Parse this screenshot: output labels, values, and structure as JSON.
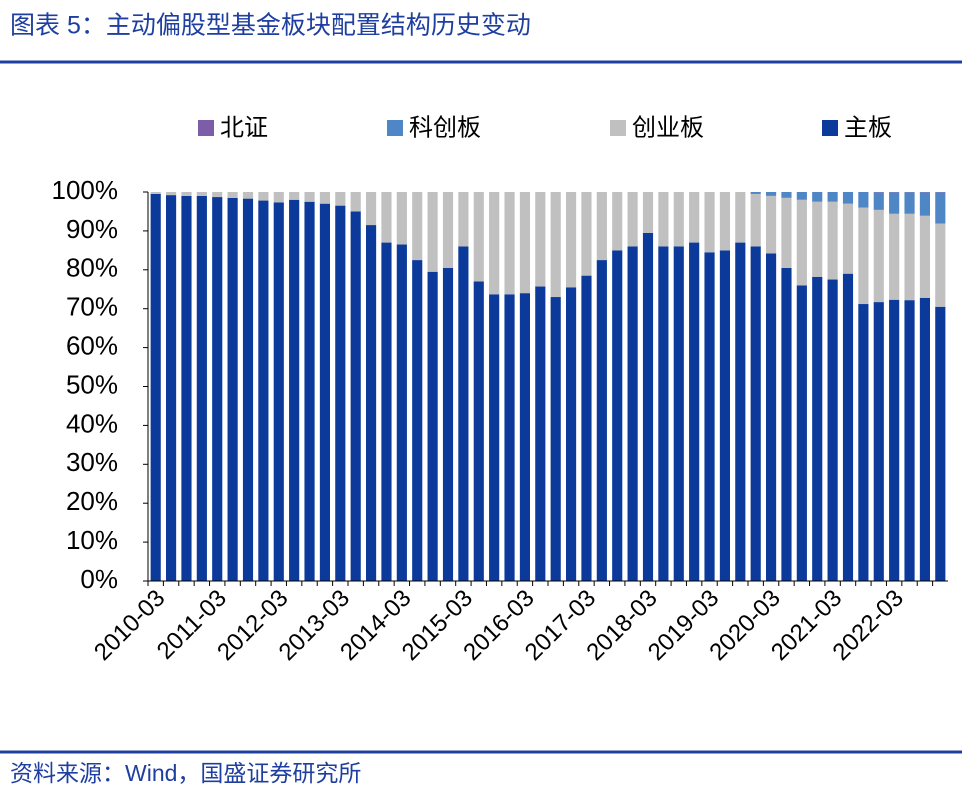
{
  "chart_data": {
    "type": "stacked_bar",
    "title": "图表 5：主动偏股型基金板块配置结构历史变动",
    "source": "资料来源：Wind，国盛证券研究所",
    "categories": [
      "2010-03",
      null,
      null,
      null,
      "2011-03",
      null,
      null,
      null,
      "2012-03",
      null,
      null,
      null,
      "2013-03",
      null,
      null,
      null,
      "2014-03",
      null,
      null,
      null,
      "2015-03",
      null,
      null,
      null,
      "2016-03",
      null,
      null,
      null,
      "2017-03",
      null,
      null,
      null,
      "2018-03",
      null,
      null,
      null,
      "2019-03",
      null,
      null,
      null,
      "2020-03",
      null,
      null,
      null,
      "2021-03",
      null,
      null,
      null,
      "2022-03",
      null,
      null,
      null
    ],
    "series": [
      {
        "name": "北证",
        "color": "#7b5ea7",
        "values": [
          0,
          0,
          0,
          0,
          0,
          0,
          0,
          0,
          0,
          0,
          0,
          0,
          0,
          0,
          0,
          0,
          0,
          0,
          0,
          0,
          0,
          0,
          0,
          0,
          0,
          0,
          0,
          0,
          0,
          0,
          0,
          0,
          0,
          0,
          0,
          0,
          0,
          0,
          0,
          0,
          0,
          0,
          0,
          0,
          0,
          0,
          0,
          0.1,
          0.1,
          0.1,
          0.1,
          0.1
        ]
      },
      {
        "name": "科创板",
        "color": "#4f86c6",
        "values": [
          0,
          0,
          0,
          0,
          0,
          0,
          0,
          0,
          0,
          0,
          0,
          0,
          0,
          0,
          0,
          0,
          0,
          0,
          0,
          0,
          0,
          0,
          0,
          0,
          0,
          0,
          0,
          0,
          0,
          0,
          0,
          0,
          0,
          0,
          0,
          0,
          0,
          0,
          0,
          0.5,
          1,
          1.5,
          2,
          2.5,
          2.5,
          3,
          4,
          4.5,
          5.5,
          5.5,
          6,
          8
        ]
      },
      {
        "name": "创业板",
        "color": "#c0c0c0",
        "values": [
          0.5,
          0.8,
          1,
          1,
          1.3,
          1.5,
          1.7,
          2.2,
          2.7,
          2,
          2.5,
          3,
          3.5,
          5,
          8.5,
          13,
          13.5,
          17.5,
          20.5,
          19.5,
          14,
          23,
          26.3,
          26.3,
          26,
          24.3,
          27,
          24.5,
          21.5,
          17.5,
          15,
          14,
          10.5,
          14,
          14,
          13,
          15.5,
          15,
          13,
          13.5,
          14.8,
          18,
          22,
          19.3,
          20,
          18,
          24.8,
          23.7,
          22.1,
          22.2,
          21.1,
          21.4
        ]
      },
      {
        "name": "主板",
        "color": "#0b3a9a",
        "values": [
          99.5,
          99.2,
          99,
          99,
          98.7,
          98.5,
          98.3,
          97.8,
          97.3,
          98,
          97.5,
          97,
          96.5,
          95,
          91.5,
          87,
          86.5,
          82.5,
          79.5,
          80.5,
          86,
          77,
          73.7,
          73.7,
          74,
          75.7,
          73,
          75.5,
          78.5,
          82.5,
          85,
          86,
          89.5,
          86,
          86,
          87,
          84.5,
          85,
          87,
          86,
          84.2,
          80.5,
          76,
          78.2,
          77.5,
          79,
          71.2,
          71.7,
          72.3,
          72.2,
          72.8,
          70.5
        ]
      }
    ],
    "ylim": [
      0,
      100
    ],
    "yticks": [
      {
        "value": 0,
        "label": "0%"
      },
      {
        "value": 10,
        "label": "10%"
      },
      {
        "value": 20,
        "label": "20%"
      },
      {
        "value": 30,
        "label": "30%"
      },
      {
        "value": 40,
        "label": "40%"
      },
      {
        "value": 50,
        "label": "50%"
      },
      {
        "value": 60,
        "label": "60%"
      },
      {
        "value": 70,
        "label": "70%"
      },
      {
        "value": 80,
        "label": "80%"
      },
      {
        "value": 90,
        "label": "90%"
      },
      {
        "value": 100,
        "label": "100%"
      }
    ],
    "legend": "top"
  }
}
